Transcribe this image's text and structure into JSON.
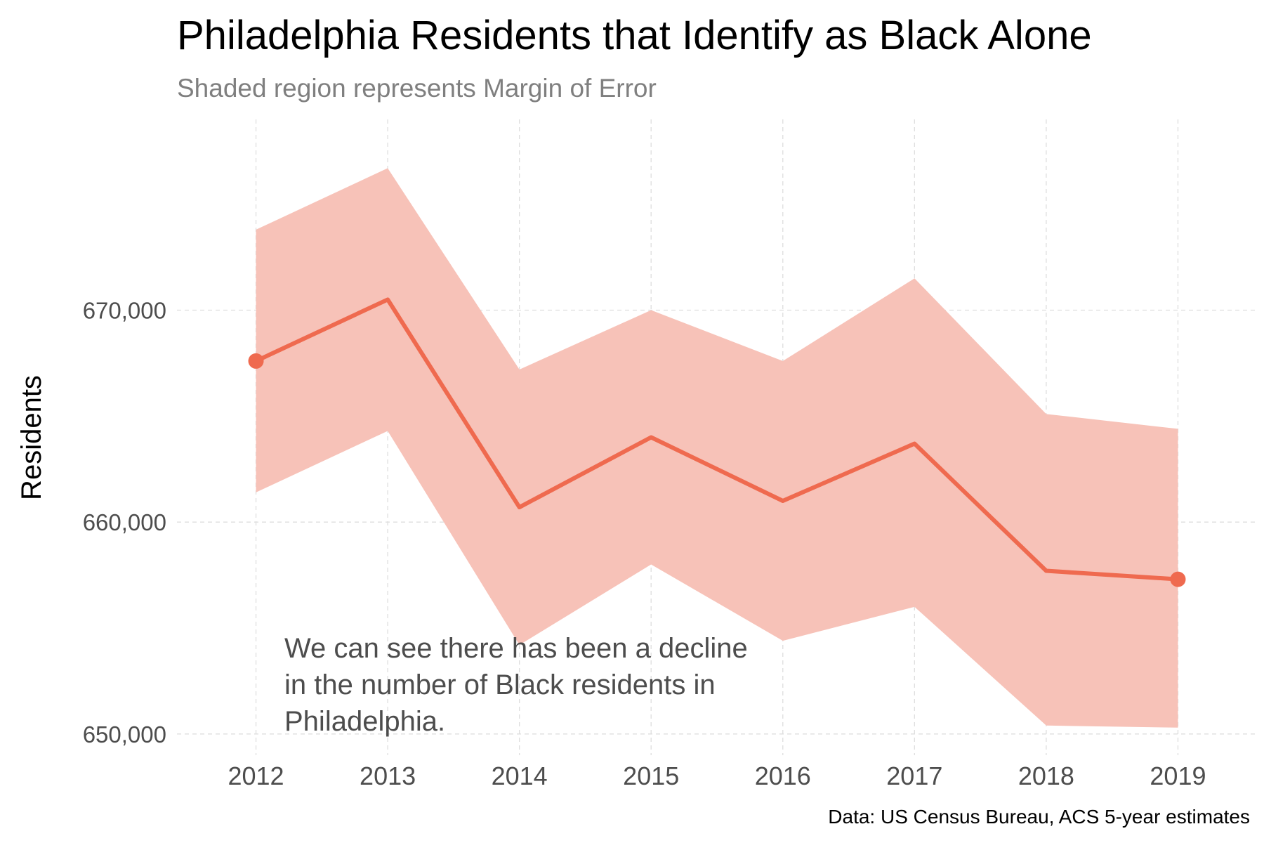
{
  "chart_data": {
    "type": "line",
    "title": "Philadelphia Residents that Identify as Black Alone",
    "subtitle": "Shaded region represents Margin of Error",
    "ylabel": "Residents",
    "xlabel": "",
    "caption": "Data: US Census Bureau, ACS 5-year estimates",
    "annotation": [
      "We can see there has been a decline",
      "in the number of Black residents in",
      "Philadelphia."
    ],
    "x": [
      2012,
      2013,
      2014,
      2015,
      2016,
      2017,
      2018,
      2019
    ],
    "x_tick_labels": [
      "2012",
      "2013",
      "2014",
      "2015",
      "2016",
      "2017",
      "2018",
      "2019"
    ],
    "y_ticks": [
      650000,
      660000,
      670000
    ],
    "y_tick_labels": [
      "650,000",
      "660,000",
      "670,000"
    ],
    "ylim": [
      649000,
      679000
    ],
    "xlim": [
      2011.4,
      2019.6
    ],
    "grid": true,
    "series": [
      {
        "values": [
          667600,
          670500,
          660700,
          664000,
          661000,
          663700,
          657700,
          657300
        ],
        "lower": [
          661400,
          664300,
          654200,
          658000,
          654400,
          656000,
          650400,
          650300
        ],
        "upper": [
          673800,
          676700,
          667200,
          670000,
          667600,
          671500,
          665100,
          664400
        ],
        "color": "#ef6a4f",
        "band_color": "#f7c2b8",
        "endpoint_markers": true
      }
    ]
  }
}
